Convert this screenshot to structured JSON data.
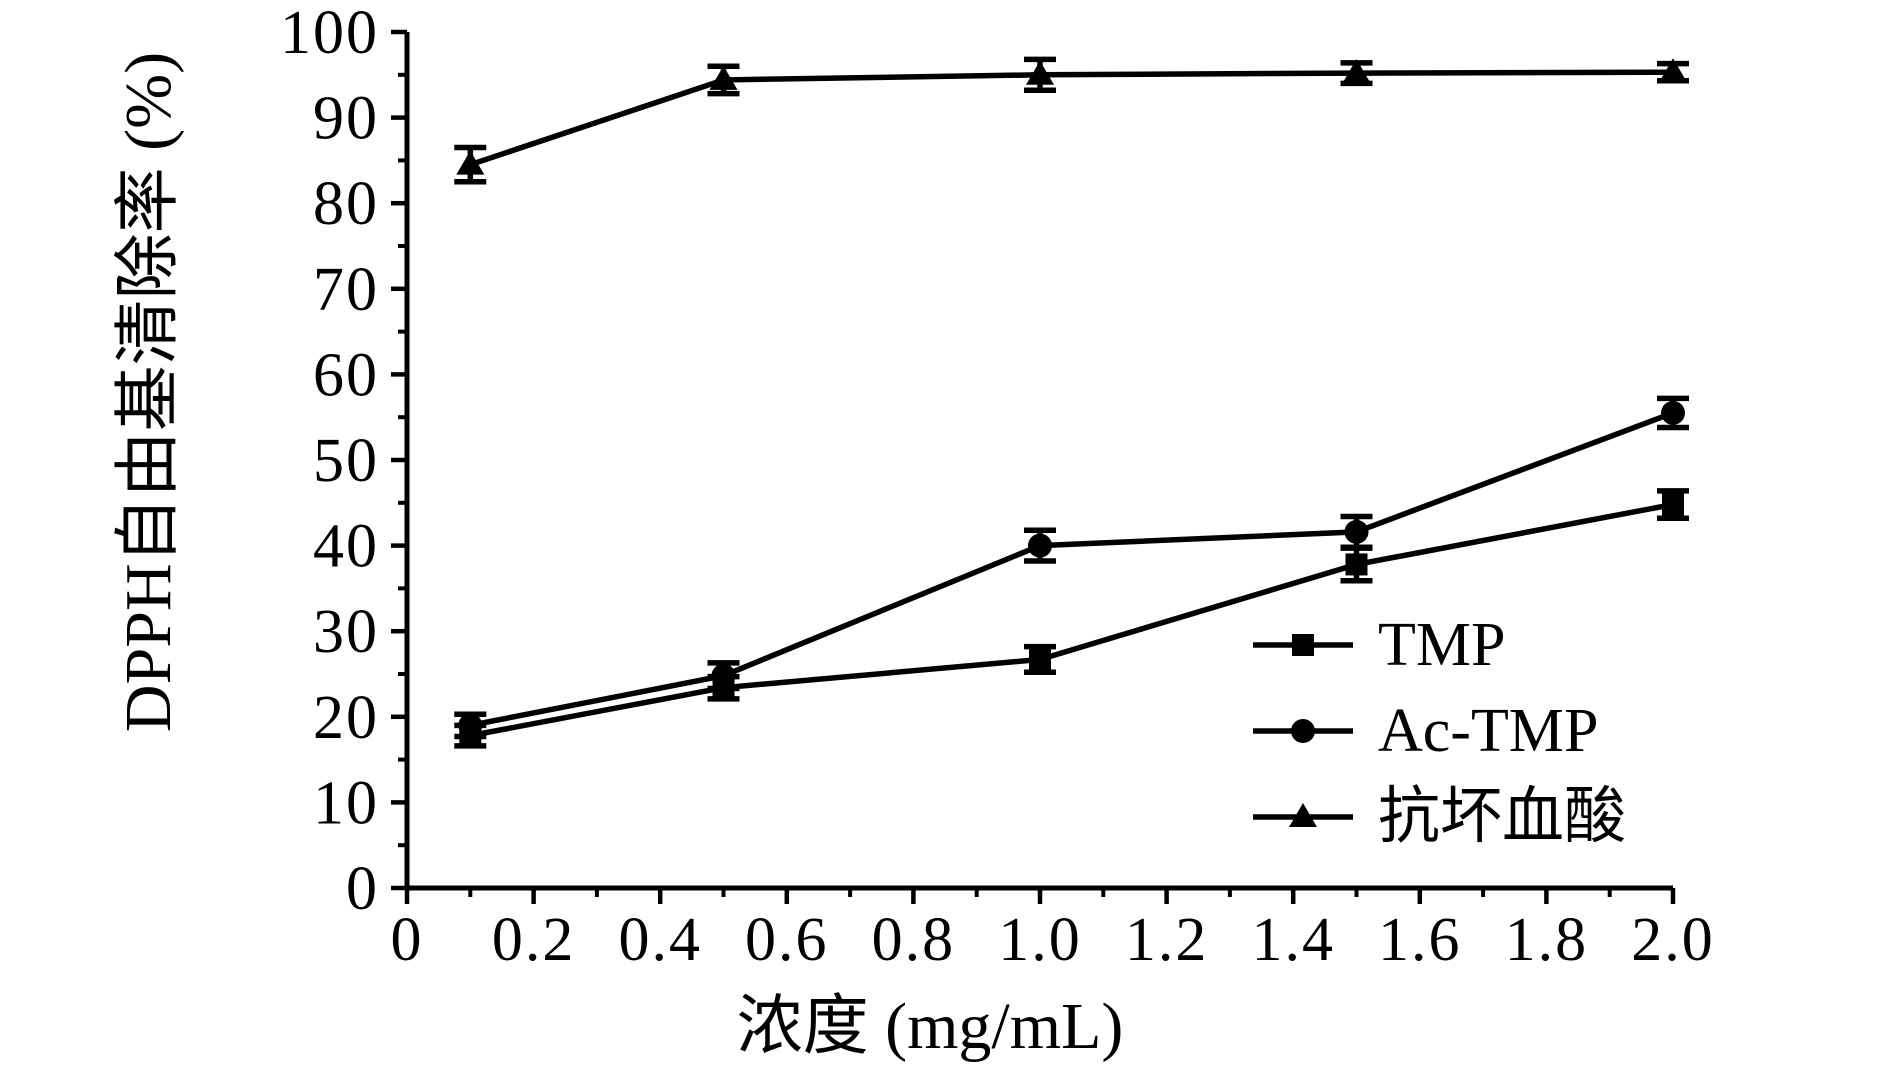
{
  "figure": {
    "background": "#ffffff",
    "ink_color": "#000000"
  },
  "chart_data": {
    "type": "line",
    "title": "",
    "xlabel": "浓度 (mg/mL)",
    "ylabel": "DPPH自由基清除率 (%)",
    "x": [
      0.1,
      0.5,
      1.0,
      1.5,
      2.0
    ],
    "series": [
      {
        "name": "TMP",
        "marker": "square",
        "values": [
          17.8,
          23.4,
          26.7,
          37.8,
          44.8
        ],
        "errors": [
          1.2,
          1.3,
          1.5,
          1.9,
          1.6
        ]
      },
      {
        "name": "Ac-TMP",
        "marker": "circle",
        "values": [
          19.0,
          24.8,
          40.0,
          41.6,
          55.5
        ],
        "errors": [
          1.3,
          1.5,
          1.8,
          1.8,
          1.7
        ]
      },
      {
        "name": "抗坏血酸",
        "marker": "triangle",
        "values": [
          84.5,
          94.4,
          95.0,
          95.2,
          95.3
        ],
        "errors": [
          2.0,
          1.6,
          1.8,
          1.2,
          1.0
        ]
      }
    ],
    "xlim": [
      0,
      2.0
    ],
    "ylim": [
      0,
      100
    ],
    "x_tick_labels": [
      "0",
      "0.2",
      "0.4",
      "0.6",
      "0.8",
      "1.0",
      "1.2",
      "1.4",
      "1.6",
      "1.8",
      "2.0"
    ],
    "y_tick_labels": [
      "0",
      "10",
      "20",
      "30",
      "40",
      "50",
      "60",
      "70",
      "80",
      "90",
      "100"
    ],
    "x_minor_step": 0.1,
    "y_minor_step": 5,
    "grid": false,
    "error_bars": true,
    "legend_position": "inside-right",
    "line_color": "#000000"
  }
}
